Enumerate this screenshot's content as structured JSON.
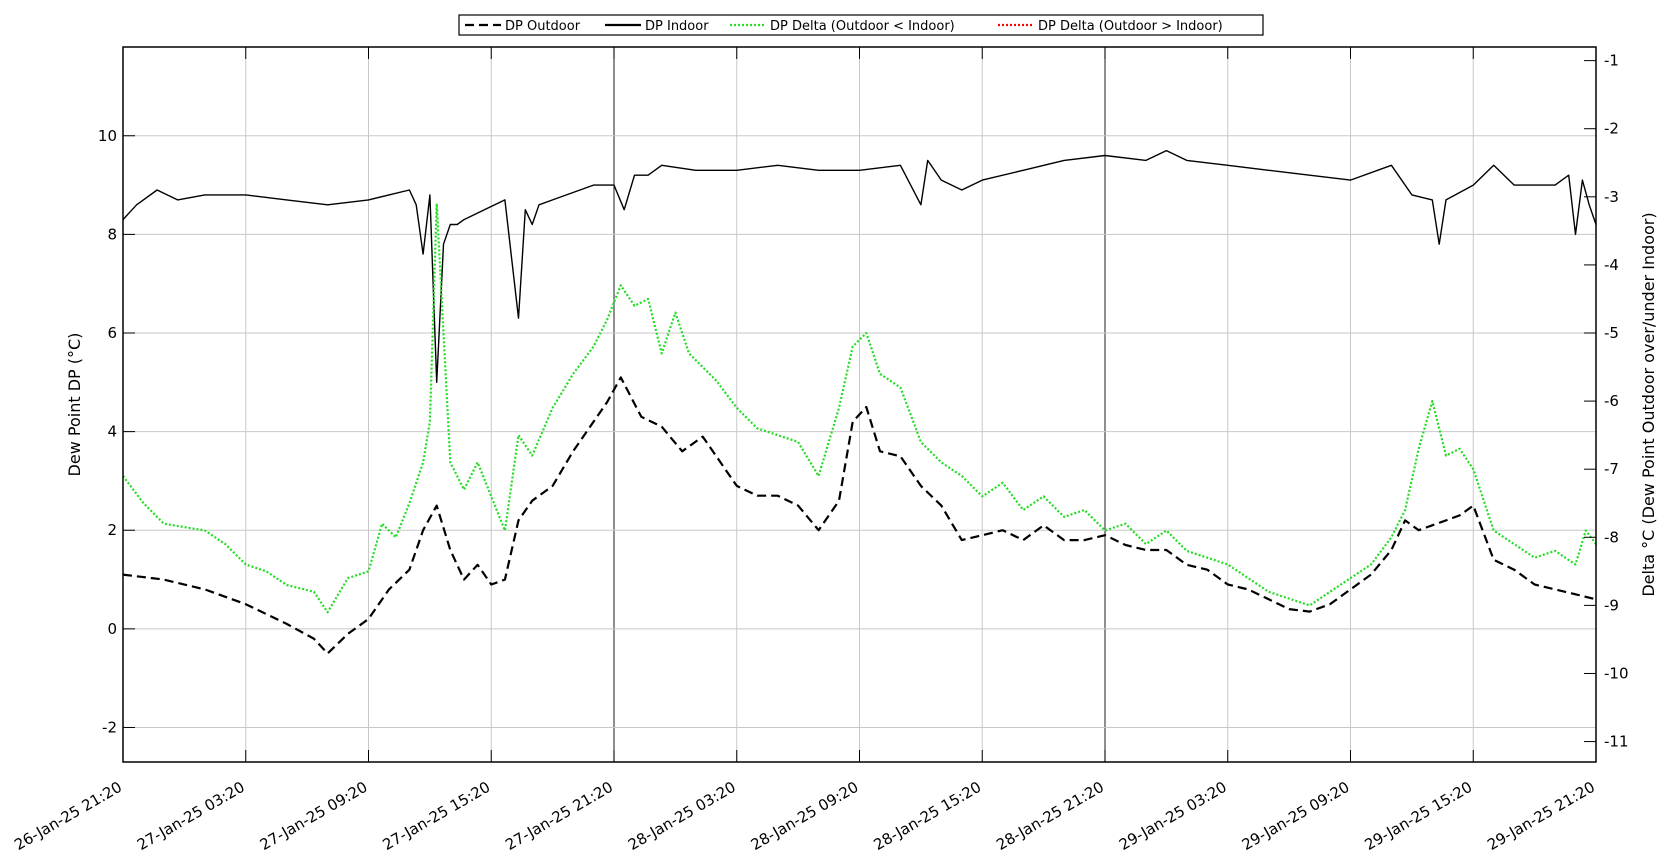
{
  "chart_data": {
    "type": "line",
    "title": "",
    "xlabel": "",
    "ylabel": "Dew Point DP (°C)",
    "y2label": "Delta °C (Dew Point Outdoor over/under Indoor)",
    "x_range": [
      "2025-01-26 21:20",
      "2025-01-29 21:20"
    ],
    "ylim": [
      -2.7,
      11.8
    ],
    "y2lim": [
      -11.3,
      -0.8
    ],
    "x_ticks": [
      "26-Jan-25 21:20",
      "27-Jan-25 03:20",
      "27-Jan-25 09:20",
      "27-Jan-25 15:20",
      "27-Jan-25 21:20",
      "28-Jan-25 03:20",
      "28-Jan-25 09:20",
      "28-Jan-25 15:20",
      "28-Jan-25 21:20",
      "29-Jan-25 03:20",
      "29-Jan-25 09:20",
      "29-Jan-25 15:20",
      "29-Jan-25 21:20"
    ],
    "y_ticks": [
      "-2",
      "0",
      "2",
      "4",
      "6",
      "8",
      "10"
    ],
    "y2_ticks": [
      "-11",
      "-10",
      "-9",
      "-8",
      "-7",
      "-6",
      "-5",
      "-4",
      "-3",
      "-2",
      "-1"
    ],
    "grid": true,
    "legend_position": "top",
    "series": [
      {
        "name": "DP Outdoor",
        "axis": "left",
        "color": "#000000",
        "style": "dashed",
        "x": [
          "2025-01-26 21:20",
          "2025-01-26 23:20",
          "2025-01-27 01:20",
          "2025-01-27 03:20",
          "2025-01-27 05:20",
          "2025-01-27 06:40",
          "2025-01-27 07:20",
          "2025-01-27 08:20",
          "2025-01-27 09:20",
          "2025-01-27 10:20",
          "2025-01-27 11:20",
          "2025-01-27 12:00",
          "2025-01-27 12:40",
          "2025-01-27 13:20",
          "2025-01-27 14:00",
          "2025-01-27 14:40",
          "2025-01-27 15:20",
          "2025-01-27 16:00",
          "2025-01-27 16:40",
          "2025-01-27 17:20",
          "2025-01-27 18:20",
          "2025-01-27 19:20",
          "2025-01-27 20:20",
          "2025-01-27 21:00",
          "2025-01-27 21:40",
          "2025-01-27 22:40",
          "2025-01-27 23:40",
          "2025-01-28 00:40",
          "2025-01-28 01:40",
          "2025-01-28 02:40",
          "2025-01-28 03:20",
          "2025-01-28 04:20",
          "2025-01-28 05:20",
          "2025-01-28 06:20",
          "2025-01-28 07:20",
          "2025-01-28 08:20",
          "2025-01-28 09:00",
          "2025-01-28 09:40",
          "2025-01-28 10:20",
          "2025-01-28 11:20",
          "2025-01-28 12:20",
          "2025-01-28 13:20",
          "2025-01-28 14:20",
          "2025-01-28 15:20",
          "2025-01-28 16:20",
          "2025-01-28 17:20",
          "2025-01-28 18:20",
          "2025-01-28 19:20",
          "2025-01-28 20:20",
          "2025-01-28 21:20",
          "2025-01-28 22:20",
          "2025-01-28 23:20",
          "2025-01-29 00:20",
          "2025-01-29 01:20",
          "2025-01-29 02:20",
          "2025-01-29 03:20",
          "2025-01-29 04:20",
          "2025-01-29 05:20",
          "2025-01-29 06:20",
          "2025-01-29 07:20",
          "2025-01-29 08:20",
          "2025-01-29 09:20",
          "2025-01-29 10:20",
          "2025-01-29 11:20",
          "2025-01-29 12:00",
          "2025-01-29 12:40",
          "2025-01-29 13:20",
          "2025-01-29 14:00",
          "2025-01-29 14:40",
          "2025-01-29 15:20",
          "2025-01-29 16:20",
          "2025-01-29 17:20",
          "2025-01-29 18:20",
          "2025-01-29 19:20",
          "2025-01-29 20:20",
          "2025-01-29 21:20"
        ],
        "y": [
          1.1,
          1.0,
          0.8,
          0.5,
          0.1,
          -0.2,
          -0.5,
          -0.1,
          0.2,
          0.8,
          1.2,
          2.0,
          2.5,
          1.6,
          1.0,
          1.3,
          0.9,
          1.0,
          2.2,
          2.6,
          2.9,
          3.6,
          4.2,
          4.6,
          5.1,
          4.3,
          4.1,
          3.6,
          3.9,
          3.3,
          2.9,
          2.7,
          2.7,
          2.5,
          2.0,
          2.6,
          4.2,
          4.5,
          3.6,
          3.5,
          2.9,
          2.5,
          1.8,
          1.9,
          2.0,
          1.8,
          2.1,
          1.8,
          1.8,
          1.9,
          1.7,
          1.6,
          1.6,
          1.3,
          1.2,
          0.9,
          0.8,
          0.6,
          0.4,
          0.35,
          0.5,
          0.8,
          1.1,
          1.6,
          2.2,
          2.0,
          2.1,
          2.2,
          2.3,
          2.5,
          1.4,
          1.2,
          0.9,
          0.8,
          0.7,
          0.6
        ]
      },
      {
        "name": "DP Indoor",
        "axis": "left",
        "color": "#000000",
        "style": "solid",
        "x": [
          "2025-01-26 21:20",
          "2025-01-26 22:00",
          "2025-01-26 23:00",
          "2025-01-27 00:00",
          "2025-01-27 01:20",
          "2025-01-27 03:20",
          "2025-01-27 05:20",
          "2025-01-27 07:20",
          "2025-01-27 09:20",
          "2025-01-27 11:20",
          "2025-01-27 11:40",
          "2025-01-27 12:00",
          "2025-01-27 12:20",
          "2025-01-27 12:40",
          "2025-01-27 13:00",
          "2025-01-27 13:20",
          "2025-01-27 13:40",
          "2025-01-27 14:00",
          "2025-01-27 15:00",
          "2025-01-27 16:00",
          "2025-01-27 16:40",
          "2025-01-27 17:00",
          "2025-01-27 17:20",
          "2025-01-27 17:40",
          "2025-01-27 18:20",
          "2025-01-27 20:20",
          "2025-01-27 21:20",
          "2025-01-27 21:50",
          "2025-01-27 22:20",
          "2025-01-27 23:00",
          "2025-01-27 23:40",
          "2025-01-28 01:20",
          "2025-01-28 03:20",
          "2025-01-28 05:20",
          "2025-01-28 07:20",
          "2025-01-28 09:20",
          "2025-01-28 11:20",
          "2025-01-28 12:20",
          "2025-01-28 12:40",
          "2025-01-28 13:20",
          "2025-01-28 14:20",
          "2025-01-28 15:20",
          "2025-01-28 17:20",
          "2025-01-28 19:20",
          "2025-01-28 21:20",
          "2025-01-28 23:20",
          "2025-01-29 00:20",
          "2025-01-29 01:20",
          "2025-01-29 03:20",
          "2025-01-29 05:20",
          "2025-01-29 07:20",
          "2025-01-29 09:20",
          "2025-01-29 11:20",
          "2025-01-29 12:20",
          "2025-01-29 13:20",
          "2025-01-29 13:40",
          "2025-01-29 14:00",
          "2025-01-29 15:20",
          "2025-01-29 16:20",
          "2025-01-29 17:20",
          "2025-01-29 19:20",
          "2025-01-29 20:00",
          "2025-01-29 20:20",
          "2025-01-29 20:40",
          "2025-01-29 21:00",
          "2025-01-29 21:20"
        ],
        "y": [
          8.3,
          8.6,
          8.9,
          8.7,
          8.8,
          8.8,
          8.7,
          8.6,
          8.7,
          8.9,
          8.6,
          7.6,
          8.8,
          5.0,
          7.8,
          8.2,
          8.2,
          8.3,
          8.5,
          8.7,
          6.3,
          8.5,
          8.2,
          8.6,
          8.7,
          9.0,
          9.0,
          8.5,
          9.2,
          9.2,
          9.4,
          9.3,
          9.3,
          9.4,
          9.3,
          9.3,
          9.4,
          8.6,
          9.5,
          9.1,
          8.9,
          9.1,
          9.3,
          9.5,
          9.6,
          9.5,
          9.7,
          9.5,
          9.4,
          9.3,
          9.2,
          9.1,
          9.4,
          8.8,
          8.7,
          7.8,
          8.7,
          9.0,
          9.4,
          9.0,
          9.0,
          9.2,
          8.0,
          9.1,
          8.6,
          8.2
        ]
      },
      {
        "name": "DP Delta (Outdoor < Indoor)",
        "axis": "right",
        "color": "#22dd22",
        "style": "dotted",
        "x": [
          "2025-01-26 21:20",
          "2025-01-26 22:20",
          "2025-01-26 23:20",
          "2025-01-27 01:20",
          "2025-01-27 02:20",
          "2025-01-27 03:20",
          "2025-01-27 04:20",
          "2025-01-27 05:20",
          "2025-01-27 06:40",
          "2025-01-27 07:20",
          "2025-01-27 08:20",
          "2025-01-27 09:20",
          "2025-01-27 10:00",
          "2025-01-27 10:40",
          "2025-01-27 11:20",
          "2025-01-27 12:00",
          "2025-01-27 12:20",
          "2025-01-27 12:40",
          "2025-01-27 13:20",
          "2025-01-27 14:00",
          "2025-01-27 14:40",
          "2025-01-27 15:20",
          "2025-01-27 16:00",
          "2025-01-27 16:40",
          "2025-01-27 17:20",
          "2025-01-27 18:20",
          "2025-01-27 19:20",
          "2025-01-27 20:20",
          "2025-01-27 21:00",
          "2025-01-27 21:40",
          "2025-01-27 22:20",
          "2025-01-27 23:00",
          "2025-01-27 23:40",
          "2025-01-28 00:20",
          "2025-01-28 01:00",
          "2025-01-28 02:20",
          "2025-01-28 03:20",
          "2025-01-28 04:20",
          "2025-01-28 05:20",
          "2025-01-28 06:20",
          "2025-01-28 07:20",
          "2025-01-28 08:20",
          "2025-01-28 09:00",
          "2025-01-28 09:40",
          "2025-01-28 10:20",
          "2025-01-28 11:20",
          "2025-01-28 12:20",
          "2025-01-28 13:20",
          "2025-01-28 14:20",
          "2025-01-28 15:20",
          "2025-01-28 16:20",
          "2025-01-28 17:20",
          "2025-01-28 18:20",
          "2025-01-28 19:20",
          "2025-01-28 20:20",
          "2025-01-28 21:20",
          "2025-01-28 22:20",
          "2025-01-28 23:20",
          "2025-01-29 00:20",
          "2025-01-29 01:20",
          "2025-01-29 02:20",
          "2025-01-29 03:20",
          "2025-01-29 04:20",
          "2025-01-29 05:20",
          "2025-01-29 06:20",
          "2025-01-29 07:20",
          "2025-01-29 08:20",
          "2025-01-29 09:20",
          "2025-01-29 10:20",
          "2025-01-29 11:20",
          "2025-01-29 12:00",
          "2025-01-29 12:40",
          "2025-01-29 13:20",
          "2025-01-29 14:00",
          "2025-01-29 14:40",
          "2025-01-29 15:20",
          "2025-01-29 16:20",
          "2025-01-29 17:20",
          "2025-01-29 18:20",
          "2025-01-29 19:20",
          "2025-01-29 20:20",
          "2025-01-29 20:50",
          "2025-01-29 21:20"
        ],
        "y": [
          -7.1,
          -7.5,
          -7.8,
          -7.9,
          -8.1,
          -8.4,
          -8.5,
          -8.7,
          -8.8,
          -9.1,
          -8.6,
          -8.5,
          -7.8,
          -8.0,
          -7.5,
          -6.9,
          -6.3,
          -3.1,
          -6.9,
          -7.3,
          -6.9,
          -7.4,
          -7.9,
          -6.5,
          -6.8,
          -6.1,
          -5.6,
          -5.2,
          -4.8,
          -4.3,
          -4.6,
          -4.5,
          -5.3,
          -4.7,
          -5.3,
          -5.7,
          -6.1,
          -6.4,
          -6.5,
          -6.6,
          -7.1,
          -6.1,
          -5.2,
          -5.0,
          -5.6,
          -5.8,
          -6.6,
          -6.9,
          -7.1,
          -7.4,
          -7.2,
          -7.6,
          -7.4,
          -7.7,
          -7.6,
          -7.9,
          -7.8,
          -8.1,
          -7.9,
          -8.2,
          -8.3,
          -8.4,
          -8.6,
          -8.8,
          -8.9,
          -9.0,
          -8.8,
          -8.6,
          -8.4,
          -8.0,
          -7.6,
          -6.7,
          -6.0,
          -6.8,
          -6.7,
          -7.0,
          -7.9,
          -8.1,
          -8.3,
          -8.2,
          -8.4,
          -7.9,
          -8.1
        ]
      },
      {
        "name": "DP Delta (Outdoor > Indoor)",
        "axis": "right",
        "color": "#ff0000",
        "style": "dotted",
        "x": [],
        "y": []
      }
    ]
  }
}
